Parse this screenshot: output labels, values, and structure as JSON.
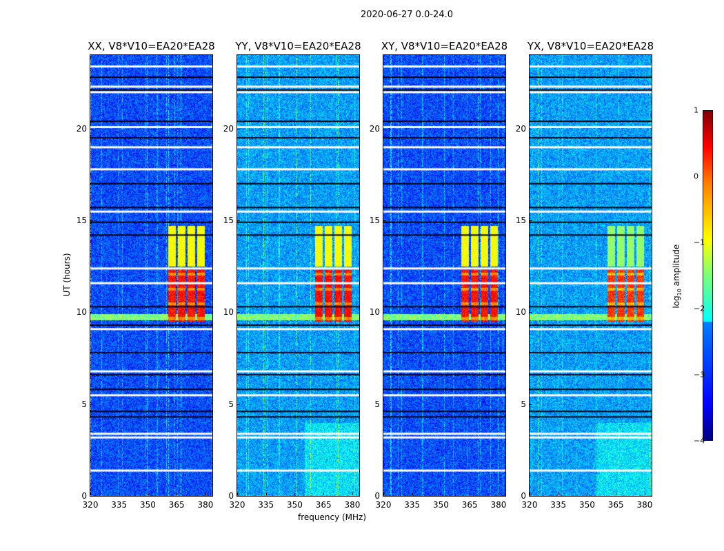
{
  "chart_data": {
    "type": "heatmap",
    "title": "2020-06-27 0.0-24.0",
    "xlabel": "frequency (MHz)",
    "ylabel": "UT (hours)",
    "xlim": [
      320,
      383.6
    ],
    "ylim": [
      0,
      24
    ],
    "xticks": [
      "320",
      "335",
      "350",
      "365",
      "380"
    ],
    "xtick_values": [
      320,
      335,
      350,
      365,
      380
    ],
    "yticks": [
      "0",
      "5",
      "10",
      "15",
      "20"
    ],
    "ytick_values": [
      0,
      5,
      10,
      15,
      20
    ],
    "panels": [
      {
        "title": "XX, V8*V10=EA20*EA28",
        "background_log_amp": -3.0,
        "rfi_upper_log_amp": -0.9,
        "rfi_lower_log_amp": 0.3
      },
      {
        "title": "YY, V8*V10=EA20*EA28",
        "background_log_amp": -2.6,
        "rfi_upper_log_amp": -0.9,
        "rfi_lower_log_amp": 0.35
      },
      {
        "title": "XY, V8*V10=EA20*EA28",
        "background_log_amp": -3.0,
        "rfi_upper_log_amp": -0.9,
        "rfi_lower_log_amp": 0.3
      },
      {
        "title": "YX, V8*V10=EA20*EA28",
        "background_log_amp": -2.6,
        "rfi_upper_log_amp": -1.4,
        "rfi_lower_log_amp": 0.1
      }
    ],
    "rfi_channels_mhz": [
      [
        360.5,
        364.5
      ],
      [
        365.5,
        369.5
      ],
      [
        370.5,
        374.5
      ],
      [
        375.5,
        379.5
      ]
    ],
    "rfi_time_hours": {
      "upper": [
        12.5,
        14.7
      ],
      "lower": [
        9.5,
        12.3
      ]
    },
    "flagged_white_ut": [
      23.4,
      22.3,
      22.0,
      20.1,
      19.0,
      17.8,
      15.5,
      12.4,
      11.6,
      9.1,
      6.8,
      5.5,
      3.4,
      3.2,
      1.4
    ],
    "flagged_black_ut": [
      22.8,
      22.1,
      20.4,
      19.5,
      17.0,
      15.7,
      14.9,
      14.2,
      10.3,
      9.3,
      7.8,
      6.6,
      5.8,
      4.6,
      4.3
    ],
    "colorbar": {
      "label": "log10 amplitude",
      "label_main": "log",
      "label_sub": "10",
      "label_rest": " amplitude",
      "range": [
        -4,
        1
      ],
      "ticks": [
        "1",
        "0",
        "−1",
        "−2",
        "−3",
        "−4"
      ],
      "tick_values": [
        1,
        0,
        -1,
        -2,
        -3,
        -4
      ],
      "colormap": "jet"
    }
  }
}
